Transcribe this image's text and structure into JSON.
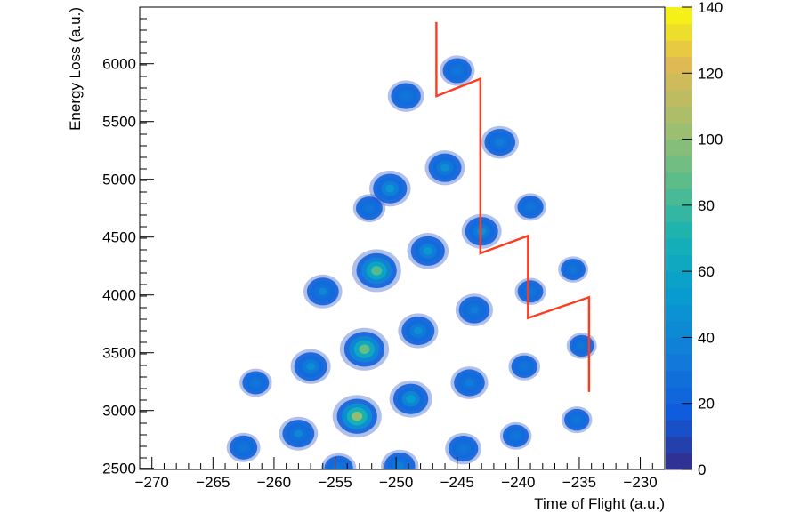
{
  "chart_data": {
    "type": "heatmap",
    "xlabel": "Time of Flight (a.u.)",
    "ylabel": "Energy Loss (a.u.)",
    "xlim": [
      -271,
      -228
    ],
    "ylim": [
      2490,
      6490
    ],
    "x_ticks": [
      -270,
      -265,
      -260,
      -255,
      -250,
      -245,
      -240,
      -235,
      -230
    ],
    "y_ticks": [
      2500,
      3000,
      3500,
      4000,
      4500,
      5000,
      5500,
      6000
    ],
    "colorbar": {
      "min": 0,
      "max": 140,
      "ticks": [
        0,
        20,
        40,
        60,
        80,
        100,
        120,
        140
      ],
      "colormap": "viridis-like (blue-green-yellow)"
    },
    "clusters": [
      {
        "x": -249.7,
        "y": 2520,
        "peak": 35
      },
      {
        "x": -254.7,
        "y": 2500,
        "peak": 25
      },
      {
        "x": -244.5,
        "y": 2670,
        "peak": 30
      },
      {
        "x": -262.5,
        "y": 2680,
        "peak": 20
      },
      {
        "x": -258.0,
        "y": 2800,
        "peak": 40
      },
      {
        "x": -253.2,
        "y": 2950,
        "peak": 100
      },
      {
        "x": -248.8,
        "y": 3100,
        "peak": 55
      },
      {
        "x": -244.0,
        "y": 3240,
        "peak": 35
      },
      {
        "x": -235.2,
        "y": 2920,
        "peak": 8
      },
      {
        "x": -240.2,
        "y": 2780,
        "peak": 12
      },
      {
        "x": -261.5,
        "y": 3240,
        "peak": 15
      },
      {
        "x": -257.0,
        "y": 3380,
        "peak": 45
      },
      {
        "x": -252.6,
        "y": 3530,
        "peak": 90
      },
      {
        "x": -248.2,
        "y": 3690,
        "peak": 45
      },
      {
        "x": -243.6,
        "y": 3870,
        "peak": 35
      },
      {
        "x": -239.5,
        "y": 3380,
        "peak": 12
      },
      {
        "x": -234.8,
        "y": 3560,
        "peak": 6
      },
      {
        "x": -256.0,
        "y": 4030,
        "peak": 40
      },
      {
        "x": -251.6,
        "y": 4210,
        "peak": 85
      },
      {
        "x": -247.4,
        "y": 4380,
        "peak": 50
      },
      {
        "x": -243.0,
        "y": 4550,
        "peak": 45
      },
      {
        "x": -239.0,
        "y": 4030,
        "peak": 10
      },
      {
        "x": -235.5,
        "y": 4220,
        "peak": 6
      },
      {
        "x": -252.2,
        "y": 4750,
        "peak": 15
      },
      {
        "x": -250.5,
        "y": 4920,
        "peak": 50
      },
      {
        "x": -246.0,
        "y": 5100,
        "peak": 45
      },
      {
        "x": -241.5,
        "y": 5320,
        "peak": 35
      },
      {
        "x": -239.0,
        "y": 4760,
        "peak": 12
      },
      {
        "x": -249.2,
        "y": 5720,
        "peak": 30
      },
      {
        "x": -245.0,
        "y": 5940,
        "peak": 25
      }
    ],
    "gate": {
      "color": "#ff3b1f",
      "points": [
        [
          -246.7,
          6360
        ],
        [
          -246.7,
          5720
        ],
        [
          -243.1,
          5870
        ],
        [
          -243.1,
          4360
        ],
        [
          -239.2,
          4510
        ],
        [
          -239.2,
          3800
        ],
        [
          -234.2,
          3980
        ],
        [
          -234.2,
          3160
        ]
      ]
    }
  }
}
